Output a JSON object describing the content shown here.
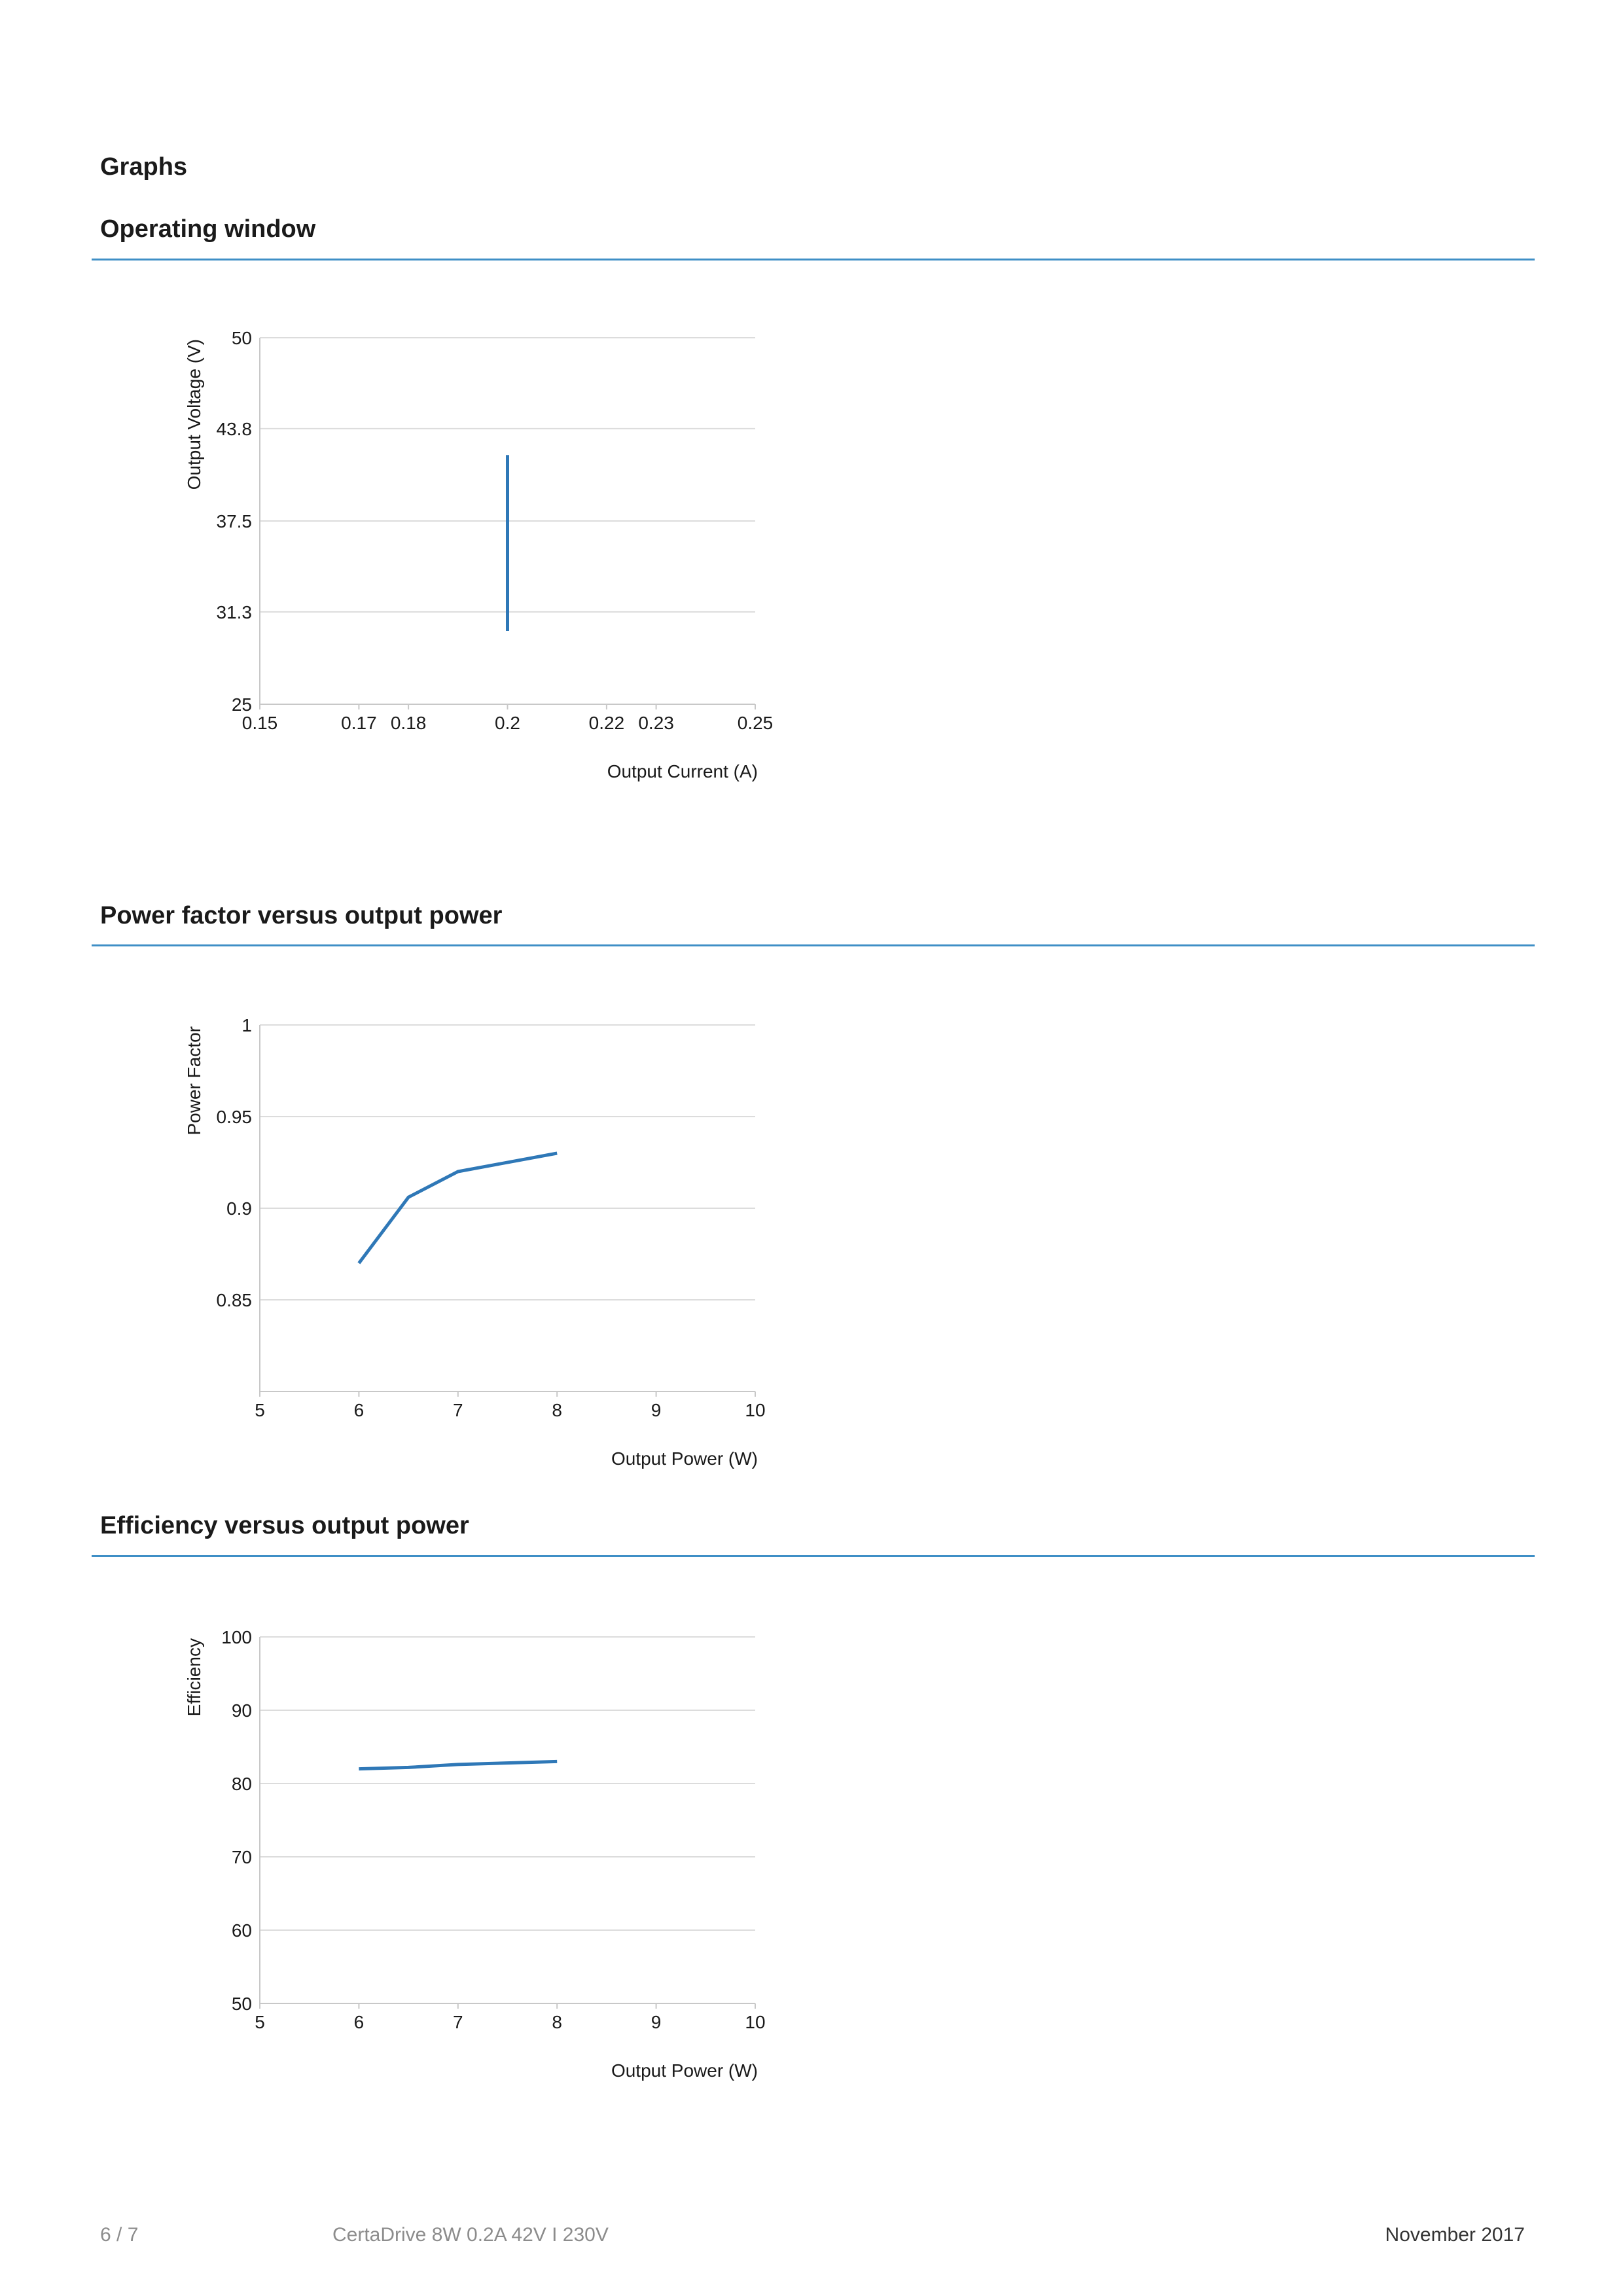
{
  "page": {
    "heading": "Graphs"
  },
  "sections": [
    {
      "title": "Operating window"
    },
    {
      "title": "Power factor versus output power"
    },
    {
      "title": "Efficiency versus output power"
    }
  ],
  "footer": {
    "page_number": "6 / 7",
    "product": "CertaDrive 8W 0.2A 42V I 230V",
    "date": "November 2017"
  },
  "colors": {
    "accent": "#3f8fc6",
    "series_line": "#2f78b7",
    "grid": "#dcdcdc"
  },
  "chart_data": [
    {
      "type": "line",
      "title": "Operating window",
      "xlabel": "Output Current (A)",
      "ylabel": "Output Voltage (V)",
      "xlim": [
        0.15,
        0.25
      ],
      "ylim": [
        25,
        50
      ],
      "xticks": [
        0.15,
        0.17,
        0.18,
        0.2,
        0.22,
        0.23,
        0.25
      ],
      "xtick_labels": [
        "0.15",
        "0.17",
        "0.18",
        "0.2",
        "0.22",
        "0.23",
        "0.25"
      ],
      "yticks": [
        25,
        31.3,
        37.5,
        43.8,
        50
      ],
      "ytick_labels": [
        "25",
        "31.3",
        "37.5",
        "43.8",
        "50"
      ],
      "grid": true,
      "series": [
        {
          "x": [
            0.2,
            0.2
          ],
          "y": [
            30,
            42
          ]
        }
      ]
    },
    {
      "type": "line",
      "title": "Power factor versus output power",
      "xlabel": "Output Power (W)",
      "ylabel": "Power Factor",
      "xlim": [
        5,
        10
      ],
      "ylim": [
        0.8,
        1
      ],
      "xticks": [
        5,
        6,
        7,
        8,
        9,
        10
      ],
      "xtick_labels": [
        "5",
        "6",
        "7",
        "8",
        "9",
        "10"
      ],
      "yticks": [
        0.85,
        0.9,
        0.95,
        1
      ],
      "ytick_labels": [
        "0.85",
        "0.9",
        "0.95",
        "1"
      ],
      "grid": true,
      "series": [
        {
          "x": [
            6,
            6.5,
            7,
            8
          ],
          "y": [
            0.87,
            0.906,
            0.92,
            0.93
          ]
        }
      ]
    },
    {
      "type": "line",
      "title": "Efficiency versus output power",
      "xlabel": "Output Power (W)",
      "ylabel": "Efficiency",
      "xlim": [
        5,
        10
      ],
      "ylim": [
        50,
        100
      ],
      "xticks": [
        5,
        6,
        7,
        8,
        9,
        10
      ],
      "xtick_labels": [
        "5",
        "6",
        "7",
        "8",
        "9",
        "10"
      ],
      "yticks": [
        50,
        60,
        70,
        80,
        90,
        100
      ],
      "ytick_labels": [
        "50",
        "60",
        "70",
        "80",
        "90",
        "100"
      ],
      "grid": true,
      "series": [
        {
          "x": [
            6,
            6.5,
            7,
            8
          ],
          "y": [
            82,
            82.2,
            82.6,
            83
          ]
        }
      ]
    }
  ]
}
